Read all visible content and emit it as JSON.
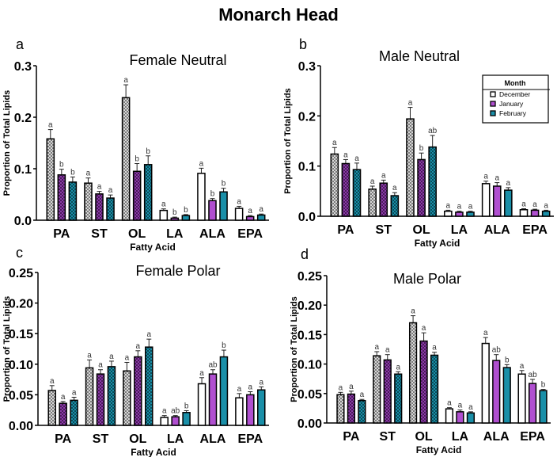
{
  "title": "Monarch Head",
  "chart_data": [
    {
      "type": "bar",
      "panel": "a",
      "title": "Female Neutral",
      "xlabel": "Fatty Acid",
      "ylabel": "Proportion of Total Lipids",
      "ylim": [
        0,
        0.3
      ],
      "yticks": [
        "0.0",
        "0.1",
        "0.2",
        "0.3"
      ],
      "categories": [
        "PA",
        "ST",
        "OL",
        "LA",
        "ALA",
        "EPA"
      ],
      "series": [
        {
          "name": "December",
          "values": [
            0.158,
            0.072,
            0.238,
            0.019,
            0.091,
            0.023
          ],
          "errors": [
            0.018,
            0.01,
            0.025,
            0.003,
            0.01,
            0.004
          ],
          "letters": [
            "a",
            "a",
            "a",
            "a",
            "a",
            "a"
          ]
        },
        {
          "name": "January",
          "values": [
            0.088,
            0.051,
            0.095,
            0.004,
            0.038,
            0.007
          ],
          "errors": [
            0.011,
            0.005,
            0.015,
            0.002,
            0.004,
            0.002
          ],
          "letters": [
            "b",
            "a",
            "b",
            "b",
            "b",
            "a"
          ]
        },
        {
          "name": "February",
          "values": [
            0.074,
            0.043,
            0.108,
            0.009,
            0.055,
            0.01
          ],
          "errors": [
            0.01,
            0.006,
            0.017,
            0.002,
            0.007,
            0.002
          ],
          "letters": [
            "b",
            "a",
            "b",
            "b",
            "b",
            "a"
          ]
        }
      ]
    },
    {
      "type": "bar",
      "panel": "b",
      "title": "Male Neutral",
      "xlabel": "Fatty Acid",
      "ylabel": "Proportion of Total Lipids",
      "ylim": [
        0,
        0.3
      ],
      "yticks": [
        "0.0",
        "0.1",
        "0.2",
        "0.3"
      ],
      "categories": [
        "PA",
        "ST",
        "OL",
        "LA",
        "ALA",
        "EPA"
      ],
      "series": [
        {
          "name": "December",
          "values": [
            0.124,
            0.054,
            0.194,
            0.01,
            0.065,
            0.013
          ],
          "errors": [
            0.013,
            0.006,
            0.023,
            0.002,
            0.005,
            0.002
          ],
          "letters": [
            "a",
            "a",
            "a",
            "a",
            "a",
            "a"
          ]
        },
        {
          "name": "January",
          "values": [
            0.105,
            0.066,
            0.113,
            0.008,
            0.06,
            0.012
          ],
          "errors": [
            0.008,
            0.006,
            0.013,
            0.002,
            0.007,
            0.002
          ],
          "letters": [
            "a",
            "a",
            "b",
            "a",
            "a",
            "a"
          ]
        },
        {
          "name": "February",
          "values": [
            0.093,
            0.041,
            0.138,
            0.008,
            0.052,
            0.01
          ],
          "errors": [
            0.013,
            0.006,
            0.023,
            0.002,
            0.005,
            0.002
          ],
          "letters": [
            "a",
            "a",
            "ab",
            "a",
            "a",
            "a"
          ]
        }
      ],
      "legend": {
        "title": "Month",
        "entries": [
          "December",
          "January",
          "February"
        ],
        "placement": "top-right"
      }
    },
    {
      "type": "bar",
      "panel": "c",
      "title": "Female Polar",
      "xlabel": "Fatty Acid",
      "ylabel": "Proportion of Total Lipids",
      "ylim": [
        0,
        0.25
      ],
      "yticks": [
        "0.00",
        "0.05",
        "0.10",
        "0.15",
        "0.20",
        "0.25"
      ],
      "categories": [
        "PA",
        "ST",
        "OL",
        "LA",
        "ALA",
        "EPA"
      ],
      "series": [
        {
          "name": "December",
          "values": [
            0.057,
            0.094,
            0.089,
            0.013,
            0.068,
            0.045
          ],
          "errors": [
            0.008,
            0.013,
            0.014,
            0.003,
            0.01,
            0.007
          ],
          "letters": [
            "a",
            "a",
            "a",
            "a",
            "a",
            "a"
          ]
        },
        {
          "name": "January",
          "values": [
            0.036,
            0.084,
            0.112,
            0.014,
            0.084,
            0.05
          ],
          "errors": [
            0.003,
            0.007,
            0.01,
            0.002,
            0.007,
            0.005
          ],
          "letters": [
            "a",
            "a",
            "a",
            "ab",
            "ab",
            "a"
          ]
        },
        {
          "name": "February",
          "values": [
            0.041,
            0.096,
            0.128,
            0.021,
            0.112,
            0.058
          ],
          "errors": [
            0.005,
            0.009,
            0.013,
            0.003,
            0.011,
            0.005
          ],
          "letters": [
            "a",
            "a",
            "a",
            "b",
            "b",
            "a"
          ]
        }
      ]
    },
    {
      "type": "bar",
      "panel": "d",
      "title": "Male Polar",
      "xlabel": "Fatty Acid",
      "ylabel": "Proportion of Total Lipids",
      "ylim": [
        0,
        0.25
      ],
      "yticks": [
        "0.00",
        "0.05",
        "0.10",
        "0.15",
        "0.20",
        "0.25"
      ],
      "categories": [
        "PA",
        "ST",
        "OL",
        "LA",
        "ALA",
        "EPA"
      ],
      "series": [
        {
          "name": "December",
          "values": [
            0.048,
            0.114,
            0.17,
            0.024,
            0.135,
            0.083
          ],
          "errors": [
            0.004,
            0.007,
            0.012,
            0.002,
            0.01,
            0.006
          ],
          "letters": [
            "a",
            "a",
            "a",
            "a",
            "a",
            "a"
          ]
        },
        {
          "name": "January",
          "values": [
            0.049,
            0.107,
            0.139,
            0.019,
            0.106,
            0.067
          ],
          "errors": [
            0.005,
            0.009,
            0.014,
            0.003,
            0.01,
            0.007
          ],
          "letters": [
            "a",
            "a",
            "a",
            "a",
            "ab",
            "ab"
          ]
        },
        {
          "name": "February",
          "values": [
            0.038,
            0.083,
            0.115,
            0.017,
            0.094,
            0.055
          ],
          "errors": [
            0.002,
            0.004,
            0.005,
            0.002,
            0.005,
            0.002
          ],
          "letters": [
            "a",
            "a",
            "a",
            "a",
            "b",
            "b"
          ]
        }
      ]
    }
  ],
  "colors": {
    "December": "#ffffff",
    "January": "#b04fd0",
    "February": "#1a8fa8",
    "dec_pattern": "#9a9a9a",
    "jan_pattern": "#6a2a80",
    "feb_pattern": "#0f5f70"
  }
}
